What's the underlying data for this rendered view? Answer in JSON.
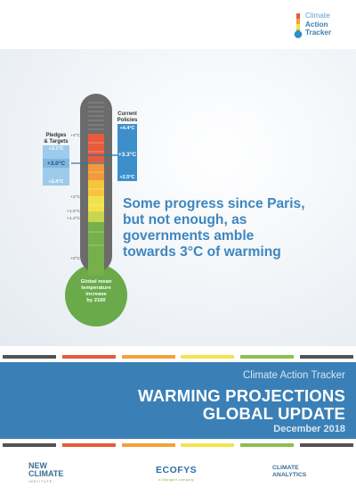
{
  "logo": {
    "line1": "Climate",
    "line2": "Action",
    "line3": "Tracker"
  },
  "headline": {
    "line1": "Some progress since Paris,",
    "line2": "but not enough, as",
    "line3": "governments amble",
    "line4": "towards 3°C of warming"
  },
  "thermometer": {
    "bulb_line1": "Global mean",
    "bulb_line2": "temperature",
    "bulb_line3": "increase",
    "bulb_line4": "by 2100",
    "ticks": [
      "+4°C",
      "+2°C",
      "+1.5°C",
      "+1.3°C",
      "+0°C"
    ],
    "pledges": {
      "title_line1": "Pledges",
      "title_line2": "& Targets",
      "high": "+3.1°C",
      "mid": "+3.0°C",
      "low": "+2.4°C",
      "color": "#9ccbeb"
    },
    "current": {
      "title_line1": "Current",
      "title_line2": "Policies",
      "high": "+4.4°C",
      "mid": "+3.3°C",
      "low": "+2.5°C",
      "color": "#3d8fcc"
    }
  },
  "stripe_colors": [
    "#535353",
    "#e75a3c",
    "#f4a138",
    "#f3e44d",
    "#8dbf4f",
    "#535353"
  ],
  "banner": {
    "subtitle": "Climate Action Tracker",
    "title_line1": "WARMING PROJECTIONS",
    "title_line2": "GLOBAL UPDATE",
    "date": "December 2018"
  },
  "partners": {
    "newclimate_line1": "NEW",
    "newclimate_line2": "CLIMATE",
    "newclimate_sub": "INSTITUTE",
    "ecofys": "ECOFYS",
    "ecofys_sub": "A Navigant company",
    "climate_analytics_line1": "CLIMATE",
    "climate_analytics_line2": "ANALYTICS"
  }
}
